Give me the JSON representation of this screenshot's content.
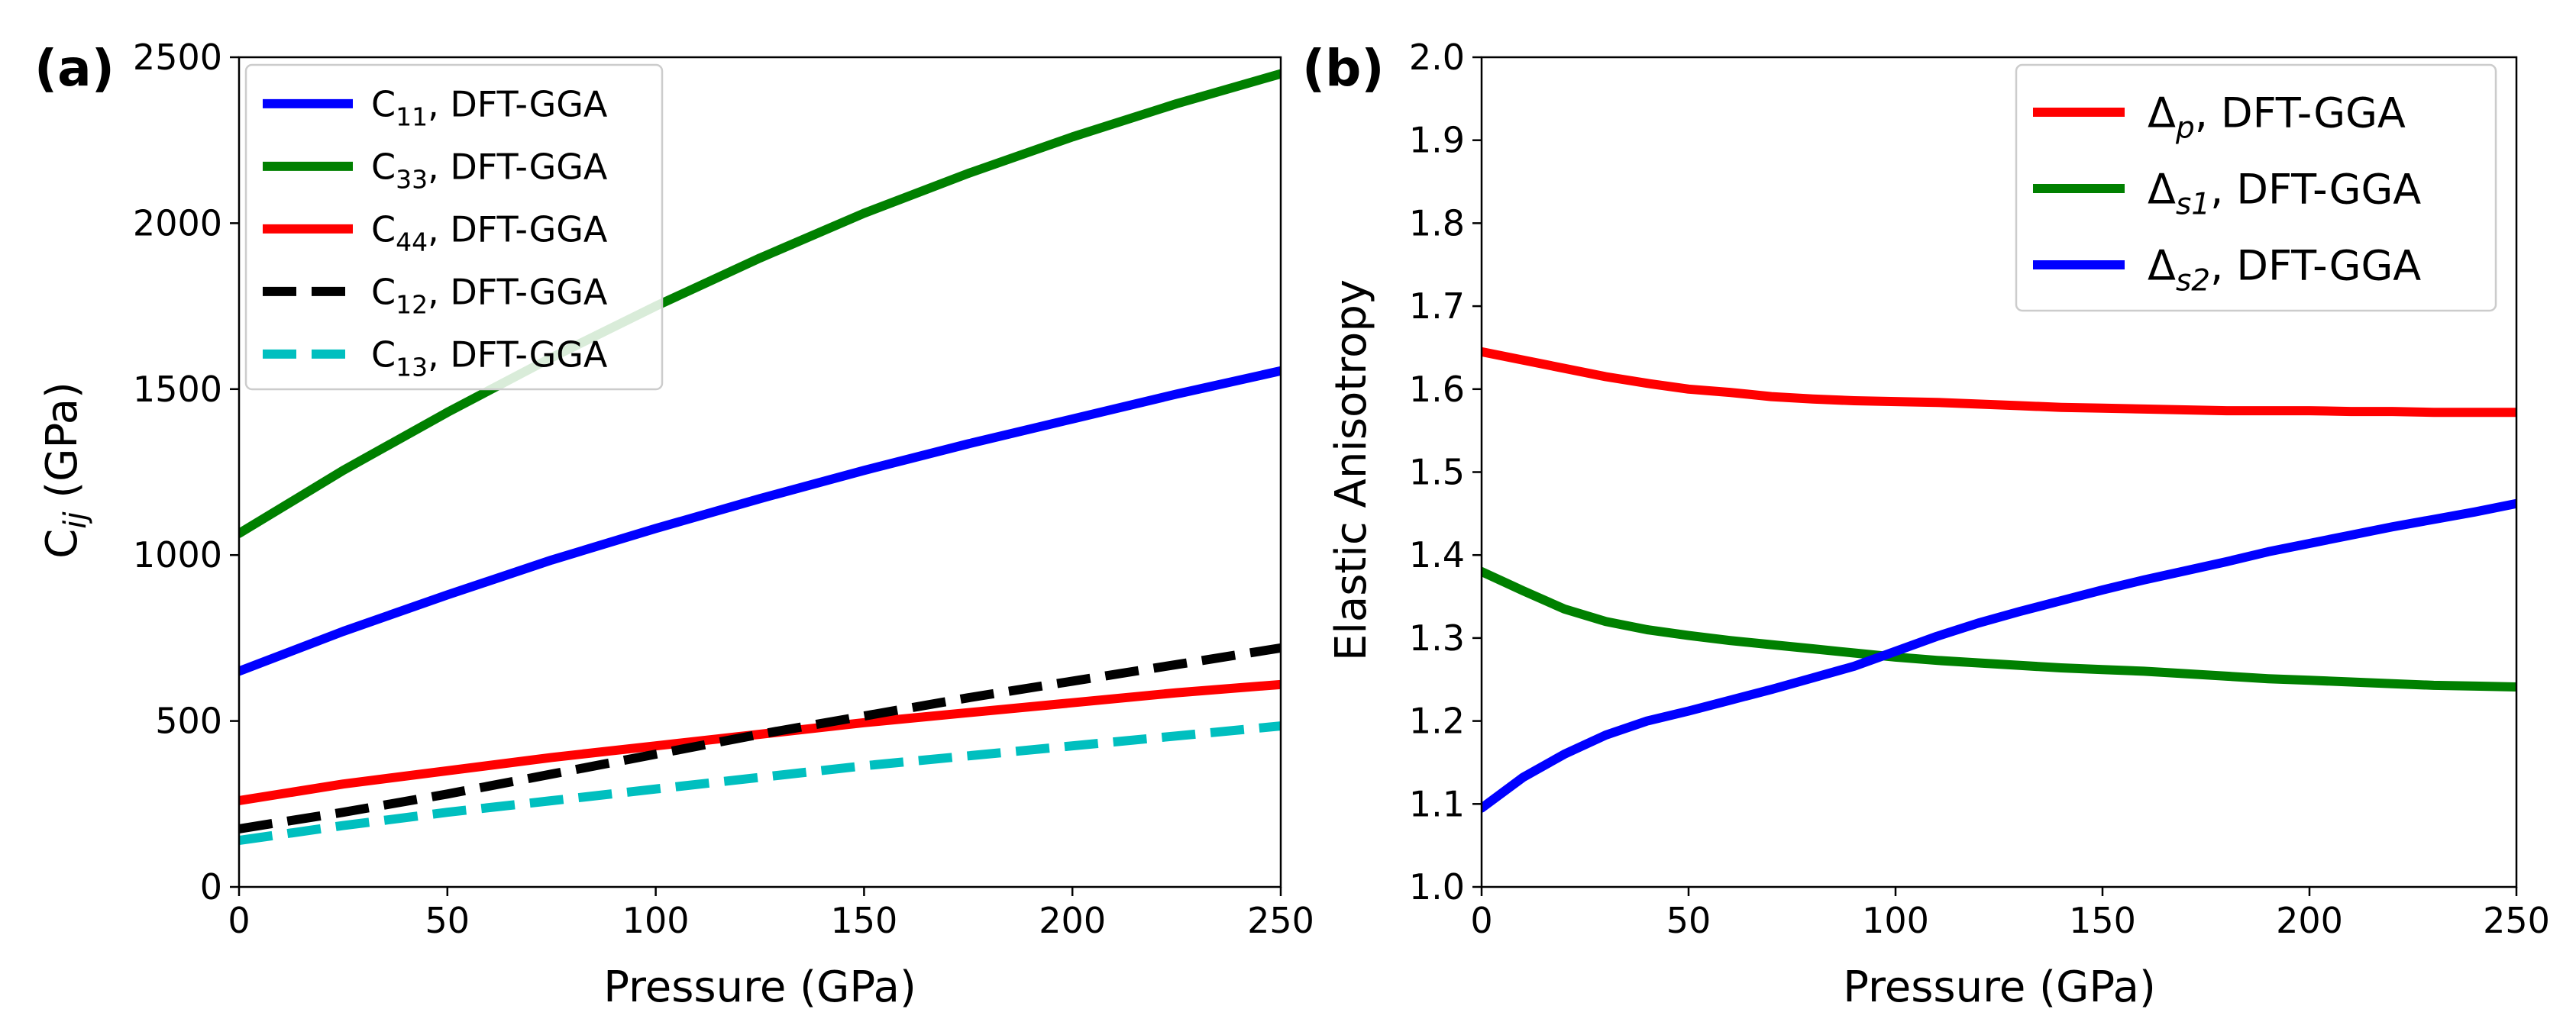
{
  "chart_data": [
    {
      "panel_label": "(a)",
      "type": "line",
      "xlabel": "Pressure (GPa)",
      "ylabel": "C_ij (GPa)",
      "xlim": [
        0,
        250
      ],
      "ylim": [
        0,
        2500
      ],
      "xticks": [
        "0",
        "50",
        "100",
        "150",
        "200",
        "250"
      ],
      "yticks": [
        "0",
        "500",
        "1000",
        "1500",
        "2000",
        "2500"
      ],
      "grid": false,
      "legend_position": "top-left",
      "series": [
        {
          "name": "C11, DFT-GGA",
          "sym": "C",
          "sub": "11",
          "rest": ", DFT-GGA",
          "color": "#0000ff",
          "dashed": false,
          "x": [
            0,
            25,
            50,
            75,
            100,
            125,
            150,
            175,
            200,
            225,
            250
          ],
          "y": [
            650,
            770,
            880,
            985,
            1080,
            1170,
            1255,
            1335,
            1410,
            1485,
            1555
          ]
        },
        {
          "name": "C33, DFT-GGA",
          "sym": "C",
          "sub": "33",
          "rest": ", DFT-GGA",
          "color": "#008000",
          "dashed": false,
          "x": [
            0,
            25,
            50,
            75,
            100,
            125,
            150,
            175,
            200,
            225,
            250
          ],
          "y": [
            1065,
            1255,
            1430,
            1595,
            1750,
            1895,
            2030,
            2150,
            2260,
            2360,
            2450
          ]
        },
        {
          "name": "C44, DFT-GGA",
          "sym": "C",
          "sub": "44",
          "rest": ", DFT-GGA",
          "color": "#ff0000",
          "dashed": false,
          "x": [
            0,
            25,
            50,
            75,
            100,
            125,
            150,
            175,
            200,
            225,
            250
          ],
          "y": [
            260,
            310,
            350,
            390,
            425,
            460,
            495,
            525,
            555,
            585,
            610
          ]
        },
        {
          "name": "C12, DFT-GGA",
          "sym": "C",
          "sub": "12",
          "rest": ", DFT-GGA",
          "color": "#000000",
          "dashed": true,
          "x": [
            0,
            25,
            50,
            75,
            100,
            125,
            150,
            175,
            200,
            225,
            250
          ],
          "y": [
            175,
            225,
            280,
            340,
            400,
            460,
            515,
            570,
            620,
            670,
            720
          ]
        },
        {
          "name": "C13, DFT-GGA",
          "sym": "C",
          "sub": "13",
          "rest": ", DFT-GGA",
          "color": "#00bfbf",
          "dashed": true,
          "x": [
            0,
            25,
            50,
            75,
            100,
            125,
            150,
            175,
            200,
            225,
            250
          ],
          "y": [
            140,
            185,
            225,
            260,
            295,
            330,
            365,
            395,
            425,
            455,
            485
          ]
        }
      ]
    },
    {
      "panel_label": "(b)",
      "type": "line",
      "xlabel": "Pressure (GPa)",
      "ylabel": "Elastic Anisotropy",
      "xlim": [
        0,
        250
      ],
      "ylim": [
        1.0,
        2.0
      ],
      "xticks": [
        "0",
        "50",
        "100",
        "150",
        "200",
        "250"
      ],
      "yticks": [
        "1.0",
        "1.1",
        "1.2",
        "1.3",
        "1.4",
        "1.5",
        "1.6",
        "1.7",
        "1.8",
        "1.9",
        "2.0"
      ],
      "grid": false,
      "legend_position": "top-right",
      "series": [
        {
          "name": "Δp, DFT-GGA",
          "sym": "Δ",
          "sub": "p",
          "rest": ", DFT-GGA",
          "color": "#ff0000",
          "dashed": false,
          "x": [
            0,
            10,
            20,
            30,
            40,
            50,
            60,
            70,
            80,
            90,
            100,
            110,
            120,
            130,
            140,
            150,
            160,
            170,
            180,
            190,
            200,
            210,
            220,
            230,
            240,
            250
          ],
          "y": [
            1.645,
            1.635,
            1.625,
            1.615,
            1.607,
            1.6,
            1.596,
            1.591,
            1.588,
            1.586,
            1.585,
            1.584,
            1.582,
            1.58,
            1.578,
            1.577,
            1.576,
            1.575,
            1.574,
            1.574,
            1.574,
            1.573,
            1.573,
            1.572,
            1.572,
            1.572
          ]
        },
        {
          "name": "Δs1, DFT-GGA",
          "sym": "Δ",
          "sub": "s1",
          "rest": ", DFT-GGA",
          "color": "#008000",
          "dashed": false,
          "x": [
            0,
            10,
            20,
            30,
            40,
            50,
            60,
            70,
            80,
            90,
            100,
            110,
            120,
            130,
            140,
            150,
            160,
            170,
            180,
            190,
            200,
            210,
            220,
            230,
            240,
            250
          ],
          "y": [
            1.38,
            1.357,
            1.335,
            1.32,
            1.31,
            1.303,
            1.297,
            1.292,
            1.287,
            1.282,
            1.277,
            1.273,
            1.27,
            1.267,
            1.264,
            1.262,
            1.26,
            1.257,
            1.254,
            1.251,
            1.249,
            1.247,
            1.245,
            1.243,
            1.242,
            1.241
          ]
        },
        {
          "name": "Δs2, DFT-GGA",
          "sym": "Δ",
          "sub": "s2",
          "rest": ", DFT-GGA",
          "color": "#0000ff",
          "dashed": false,
          "x": [
            0,
            10,
            20,
            30,
            40,
            50,
            60,
            70,
            80,
            90,
            100,
            110,
            120,
            130,
            140,
            150,
            160,
            170,
            180,
            190,
            200,
            210,
            220,
            230,
            240,
            250
          ],
          "y": [
            1.095,
            1.132,
            1.16,
            1.183,
            1.2,
            1.212,
            1.225,
            1.238,
            1.252,
            1.266,
            1.284,
            1.302,
            1.318,
            1.332,
            1.345,
            1.358,
            1.37,
            1.381,
            1.392,
            1.404,
            1.414,
            1.424,
            1.434,
            1.443,
            1.452,
            1.462
          ]
        }
      ]
    }
  ]
}
